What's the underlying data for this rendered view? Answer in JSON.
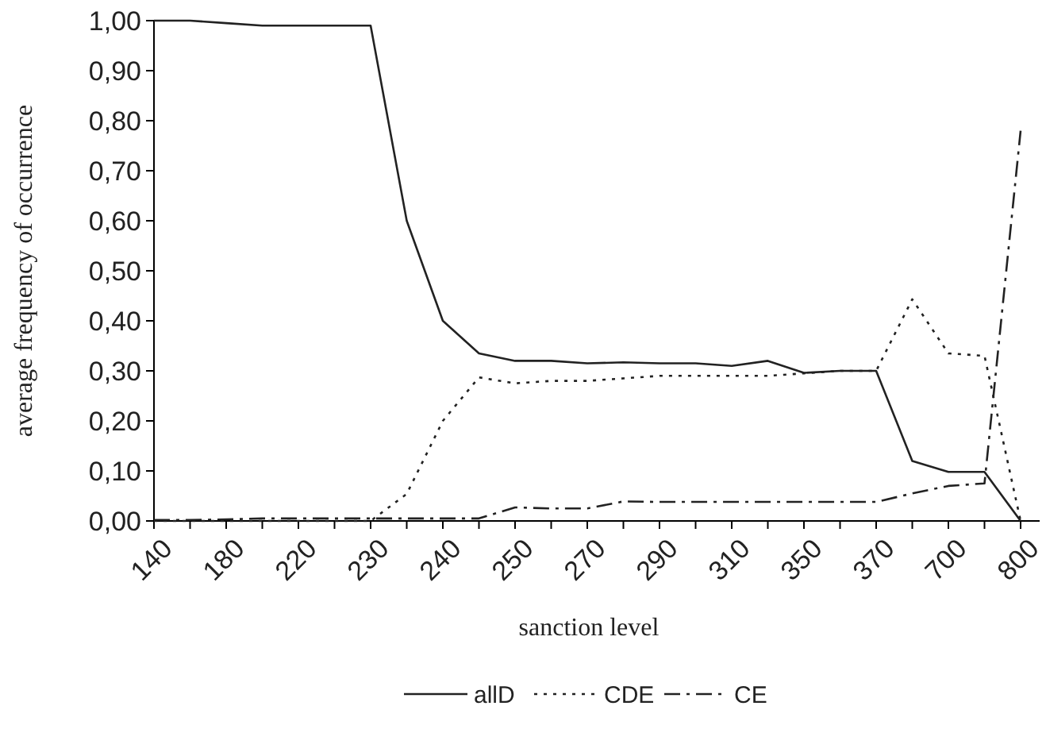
{
  "chart_data": {
    "type": "line",
    "xlabel": "sanction level",
    "ylabel": "average frequency of occurrence",
    "categories": [
      "140",
      null,
      "180",
      null,
      "220",
      null,
      "230",
      null,
      "240",
      null,
      "250",
      null,
      "270",
      null,
      "290",
      null,
      "310",
      null,
      "350",
      null,
      "370",
      null,
      "700",
      null,
      "800"
    ],
    "ylim": [
      0,
      1
    ],
    "yticks": [
      {
        "value": 0,
        "label": "0,00"
      },
      {
        "value": 0.1,
        "label": "0,10"
      },
      {
        "value": 0.2,
        "label": "0,20"
      },
      {
        "value": 0.3,
        "label": "0,30"
      },
      {
        "value": 0.4,
        "label": "0,40"
      },
      {
        "value": 0.5,
        "label": "0,50"
      },
      {
        "value": 0.6,
        "label": "0,60"
      },
      {
        "value": 0.7,
        "label": "0,70"
      },
      {
        "value": 0.8,
        "label": "0,80"
      },
      {
        "value": 0.9,
        "label": "0,90"
      },
      {
        "value": 1,
        "label": "1,00"
      }
    ],
    "grid": false,
    "legend": "bottom",
    "marker": "none",
    "series": [
      {
        "name": "allD",
        "color": "#222222",
        "line_style": "solid",
        "values": [
          1.0,
          1.0,
          0.995,
          0.99,
          0.99,
          0.99,
          0.99,
          0.6,
          0.4,
          0.335,
          0.32,
          0.32,
          0.315,
          0.317,
          0.315,
          0.315,
          0.31,
          0.32,
          0.296,
          0.3,
          0.3,
          0.12,
          0.098,
          0.098,
          0.0
        ]
      },
      {
        "name": "CDE",
        "color": "#222222",
        "line_style": "dotted",
        "values": [
          0,
          0,
          0,
          0,
          0,
          0,
          0,
          0.054,
          0.2,
          0.287,
          0.275,
          0.28,
          0.28,
          0.285,
          0.29,
          0.29,
          0.29,
          0.29,
          0.295,
          0.3,
          0.3,
          0.443,
          0.335,
          0.33,
          0.0
        ]
      },
      {
        "name": "CE",
        "color": "#222222",
        "line_style": "dashed",
        "values": [
          0.002,
          0.002,
          0.003,
          0.005,
          0.005,
          0.005,
          0.005,
          0.005,
          0.005,
          0.005,
          0.027,
          0.025,
          0.025,
          0.039,
          0.038,
          0.038,
          0.038,
          0.038,
          0.038,
          0.038,
          0.038,
          0.055,
          0.07,
          0.075,
          0.78
        ]
      }
    ]
  }
}
